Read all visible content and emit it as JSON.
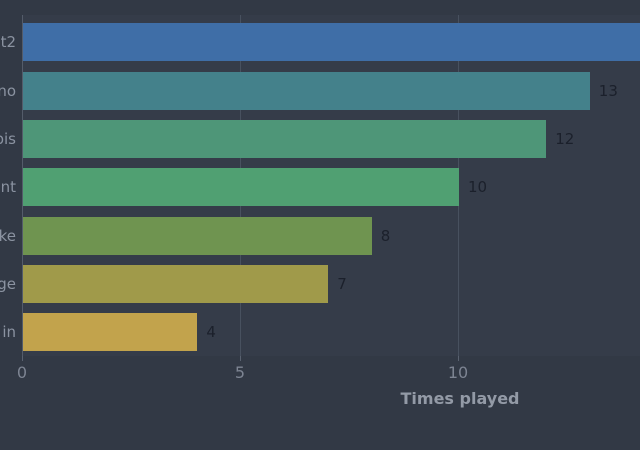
{
  "chart_data": {
    "type": "bar",
    "orientation": "horizontal",
    "title": "",
    "xlabel": "Times played",
    "ylabel": "",
    "grid": "vertical-only",
    "xlim_visible": [
      0,
      14.2
    ],
    "labels_truncated_left": true,
    "x_ticks": [
      {
        "label": "0",
        "value": 0
      },
      {
        "label": "5",
        "value": 5
      },
      {
        "label": "10",
        "value": 10
      }
    ],
    "bars": [
      {
        "label": "t2",
        "value": null,
        "value_label": "",
        "color": "#3f6ea7",
        "clipped_right": true
      },
      {
        "label": "no",
        "value": 13,
        "value_label": "13",
        "color": "#44818b",
        "clipped_right": false
      },
      {
        "label": "bis",
        "value": 12,
        "value_label": "12",
        "color": "#4e9678",
        "clipped_right": false
      },
      {
        "label": "nt",
        "value": 10,
        "value_label": "10",
        "color": "#50a072",
        "clipped_right": false
      },
      {
        "label": "ke",
        "value": 8,
        "value_label": "8",
        "color": "#6f9450",
        "clipped_right": false
      },
      {
        "label": "ge",
        "value": 7,
        "value_label": "7",
        "color": "#a09a4a",
        "clipped_right": false
      },
      {
        "label": "in",
        "value": 4,
        "value_label": "4",
        "color": "#c2a34c",
        "clipped_right": false
      }
    ]
  },
  "colors": {
    "background": "#323945",
    "plot_background": "#353c49",
    "gridline": "#48515f",
    "axis_spine": "#545c6a",
    "tick_label": "#7d8492",
    "category_label": "#8b93a1",
    "value_label": "#1b202b",
    "axis_title": "#939aa6"
  }
}
